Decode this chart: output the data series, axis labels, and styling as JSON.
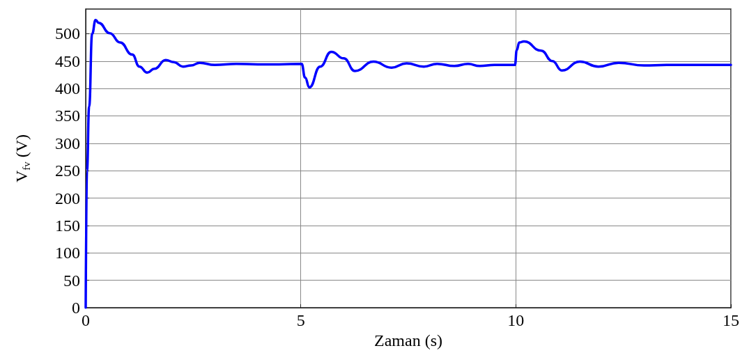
{
  "chart_data": {
    "type": "line",
    "xlabel": "Zaman (s)",
    "ylabel": "V$_{fv}$ (V)",
    "xlim": [
      0,
      15
    ],
    "xticks": [
      0,
      5,
      10,
      15
    ],
    "ylim": [
      0,
      545
    ],
    "yticks": [
      0,
      50,
      100,
      150,
      200,
      250,
      300,
      350,
      400,
      450,
      500
    ],
    "grid": true,
    "marker": "none",
    "line_style": "solid",
    "series": [
      {
        "color": "#0000ff",
        "x": [
          0,
          0.03,
          0.08,
          0.15,
          0.23,
          0.3,
          0.56,
          0.8,
          1.08,
          1.25,
          1.43,
          1.6,
          1.86,
          2.05,
          2.26,
          2.45,
          2.65,
          3.0,
          3.5,
          4.0,
          4.5,
          5.02,
          5.1,
          5.2,
          5.45,
          5.71,
          6.0,
          6.26,
          6.69,
          7.11,
          7.46,
          7.86,
          8.17,
          8.57,
          8.89,
          9.16,
          9.5,
          9.98,
          10.02,
          10.08,
          10.19,
          10.59,
          10.85,
          11.07,
          11.49,
          11.92,
          12.39,
          12.98,
          13.5,
          14.0,
          14.5,
          15
        ],
        "values": [
          0,
          250,
          367,
          500,
          525,
          520,
          501,
          484,
          462,
          440,
          429,
          436,
          452,
          448,
          440,
          442,
          447,
          443,
          445,
          444,
          444,
          445,
          420,
          402,
          440,
          467,
          455,
          432,
          449,
          438,
          446,
          440,
          445,
          441,
          445,
          441,
          443,
          443,
          470,
          484,
          486,
          469,
          450,
          433,
          449,
          440,
          447,
          442,
          443,
          443,
          443,
          443
        ]
      }
    ]
  }
}
